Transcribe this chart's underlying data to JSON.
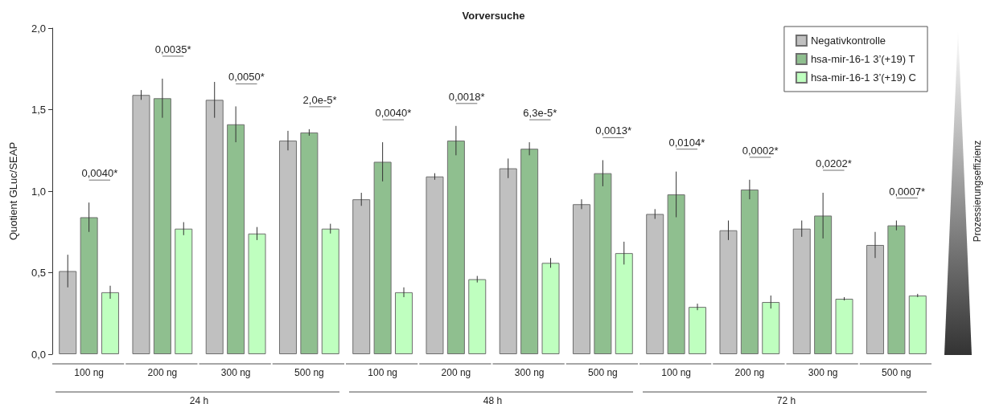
{
  "chart_data": {
    "type": "bar",
    "title": "Vorversuche",
    "ylabel": "Quotient GLuc/SEAP",
    "categories": [
      "100 ng",
      "200 ng",
      "300 ng",
      "500 ng",
      "100 ng",
      "200 ng",
      "300 ng",
      "500 ng",
      "100 ng",
      "200 ng",
      "300 ng",
      "500 ng"
    ],
    "series": [
      {
        "name": "Negativkontrolle",
        "color": "#c0c0c0",
        "values": [
          0.51,
          1.59,
          1.56,
          1.31,
          0.95,
          1.09,
          1.14,
          0.92,
          0.86,
          0.76,
          0.77,
          0.67
        ],
        "errors": [
          0.1,
          0.03,
          0.11,
          0.06,
          0.04,
          0.02,
          0.06,
          0.03,
          0.03,
          0.06,
          0.05,
          0.08
        ]
      },
      {
        "name": "hsa-mir-16-1 3’(+19) T",
        "color": "#8fbf8f",
        "values": [
          0.84,
          1.57,
          1.41,
          1.36,
          1.18,
          1.31,
          1.26,
          1.11,
          0.98,
          1.01,
          0.85,
          0.79
        ],
        "errors": [
          0.09,
          0.12,
          0.11,
          0.02,
          0.12,
          0.09,
          0.04,
          0.08,
          0.14,
          0.06,
          0.14,
          0.03
        ]
      },
      {
        "name": "hsa-mir-16-1 3’(+19) C",
        "color": "#bfffbf",
        "values": [
          0.38,
          0.77,
          0.74,
          0.77,
          0.38,
          0.46,
          0.56,
          0.62,
          0.29,
          0.32,
          0.34,
          0.36
        ],
        "errors": [
          0.04,
          0.04,
          0.04,
          0.03,
          0.03,
          0.02,
          0.03,
          0.07,
          0.02,
          0.04,
          0.01,
          0.01
        ]
      }
    ],
    "ylim": [
      0,
      2
    ],
    "yticks": [
      {
        "value": 0,
        "label": "0,0"
      },
      {
        "value": 0.5,
        "label": "0,5"
      },
      {
        "value": 1,
        "label": "1,0"
      },
      {
        "value": 1.5,
        "label": "1,5"
      },
      {
        "value": 2,
        "label": "2,0"
      }
    ],
    "annotations": [
      "0,0040*",
      "0,0035*",
      "0,0050*",
      "2,0e-5*",
      "0,0040*",
      "0,0018*",
      "6,3e-5*",
      "0,0013*",
      "0,0104*",
      "0,0002*",
      "0,0202*",
      "0,0007*",
      "24 h",
      "48 h",
      "72 h",
      "Prozessierungseffizienz"
    ],
    "grid": false,
    "legend": "top right"
  }
}
